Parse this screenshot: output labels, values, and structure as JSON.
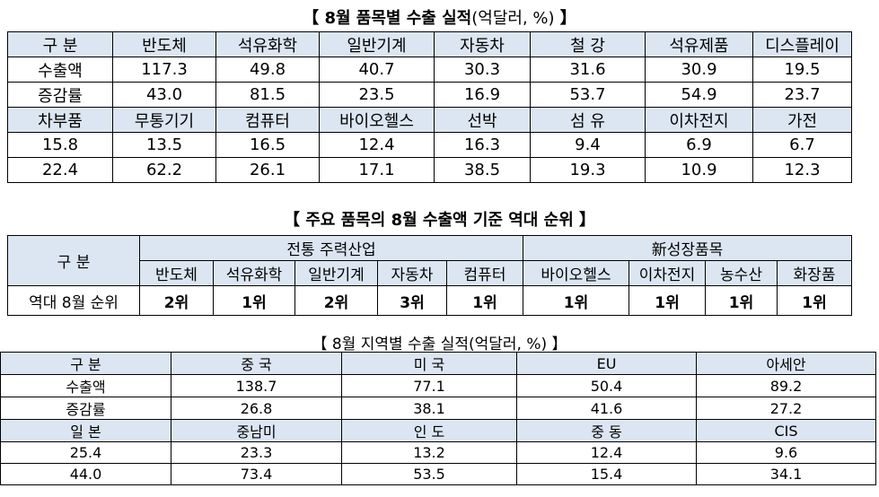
{
  "table1": {
    "title": [
      "【 8월 품목별 수출 실적",
      "(억달러, %)",
      " 】"
    ],
    "rows": [
      [
        "구 분",
        "반도체",
        "석유화학",
        "일반기계",
        "자동차",
        "철 강",
        "석유제품",
        "디스플레이"
      ],
      [
        "수출액",
        "117.3",
        "49.8",
        "40.7",
        "30.3",
        "31.6",
        "30.9",
        "19.5"
      ],
      [
        "증감률",
        "43.0",
        "81.5",
        "23.5",
        "16.9",
        "53.7",
        "54.9",
        "23.7"
      ],
      [
        "차부품",
        "무통기기",
        "컴퓨터",
        "바이오헬스",
        "선박",
        "섬 유",
        "이차전지",
        "가전"
      ],
      [
        "15.8",
        "13.5",
        "16.5",
        "12.4",
        "16.3",
        "9.4",
        "6.9",
        "6.7"
      ],
      [
        "22.4",
        "62.2",
        "26.1",
        "17.1",
        "38.5",
        "19.3",
        "10.9",
        "12.3"
      ]
    ]
  },
  "table2": {
    "title": "【 주요 품목의 8월 수출액 기준 역대 순위 】",
    "group_header": [
      "구 분",
      "전통 주력산업",
      "新성장품목"
    ],
    "sub_header": [
      "반도체",
      "석유화학",
      "일반기계",
      "자동차",
      "컴퓨터",
      "바이오헬스",
      "이차전지",
      "농수산",
      "화장품"
    ],
    "row": [
      "역대 8월 순위",
      "2위",
      "1위",
      "2위",
      "3위",
      "1위",
      "1위",
      "1위",
      "1위",
      "1위"
    ]
  },
  "table3": {
    "title": "【 8월 지역별 수출 실적(억달러, %) 】",
    "rows": [
      [
        "구 분",
        "중 국",
        "미 국",
        "EU",
        "아세안"
      ],
      [
        "수출액",
        "138.7",
        "77.1",
        "50.4",
        "89.2"
      ],
      [
        "증감률",
        "26.8",
        "38.1",
        "41.6",
        "27.2"
      ],
      [
        "일 본",
        "중남미",
        "인 도",
        "중 동",
        "CIS"
      ],
      [
        "25.4",
        "23.3",
        "13.2",
        "12.4",
        "9.6"
      ],
      [
        "44.0",
        "73.4",
        "53.5",
        "15.4",
        "34.1"
      ]
    ]
  }
}
